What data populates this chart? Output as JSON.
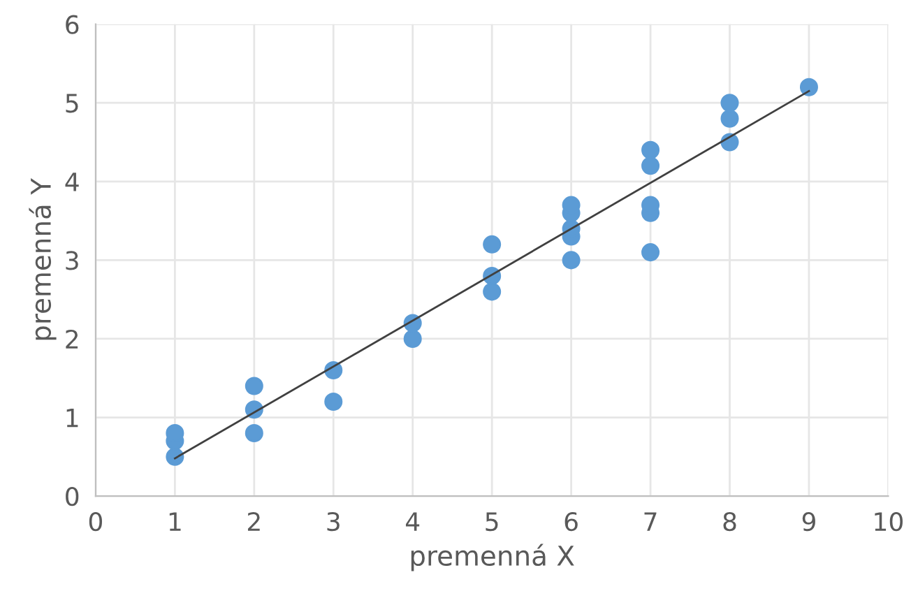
{
  "chart_data": {
    "type": "scatter",
    "xlabel": "premenná X",
    "ylabel": "premenná Y",
    "xlim": [
      0,
      10
    ],
    "xticks": [
      0,
      1,
      2,
      3,
      4,
      5,
      6,
      7,
      8,
      9,
      10
    ],
    "ylim": [
      0,
      6
    ],
    "yticks": [
      0,
      1,
      2,
      3,
      4,
      5,
      6
    ],
    "grid": true,
    "series": [
      {
        "color": "#5b9bd5",
        "marker": "circle",
        "x": [
          1,
          1,
          1,
          2,
          2,
          2,
          3,
          3,
          4,
          4,
          5,
          5,
          5,
          6,
          6,
          6,
          6,
          6,
          7,
          7,
          7,
          7,
          7,
          8,
          8,
          8,
          9
        ],
        "values": [
          0.5,
          0.7,
          0.8,
          0.8,
          1.1,
          1.4,
          1.2,
          1.6,
          2.0,
          2.2,
          2.6,
          2.8,
          3.2,
          3.0,
          3.3,
          3.4,
          3.6,
          3.7,
          3.1,
          3.6,
          3.7,
          4.2,
          4.4,
          4.5,
          4.8,
          5.0,
          5.2
        ]
      },
      {
        "type": "line",
        "color": "#404040",
        "x": [
          1,
          9
        ],
        "values": [
          0.48,
          5.15
        ],
        "line_style": "solid",
        "marker": "none"
      }
    ]
  }
}
